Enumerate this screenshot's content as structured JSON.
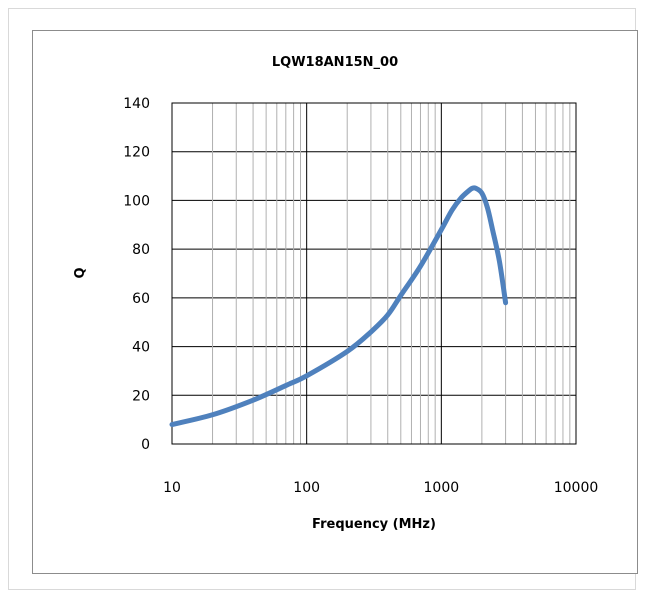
{
  "chart_data": {
    "type": "line",
    "title": "LQW18AN15N_00",
    "xlabel": "Frequency (MHz)",
    "ylabel": "Q",
    "xscale": "log",
    "xlim": [
      10,
      10000
    ],
    "ylim": [
      0,
      140
    ],
    "xticks": [
      10,
      100,
      1000,
      10000
    ],
    "xtick_labels": [
      "10",
      "100",
      "1000",
      "10000"
    ],
    "yticks": [
      0,
      20,
      40,
      60,
      80,
      100,
      120,
      140
    ],
    "ytick_labels": [
      "0",
      "20",
      "40",
      "60",
      "80",
      "100",
      "120",
      "140"
    ],
    "grid": true,
    "legend": "none",
    "line_color": "#4f81bd",
    "series": [
      {
        "x": [
          10,
          20,
          40,
          70,
          100,
          200,
          300,
          400,
          500,
          700,
          1000,
          1200,
          1400,
          1600,
          1700,
          1800,
          2000,
          2200,
          2400,
          2700,
          3000
        ],
        "y": [
          8,
          12,
          18,
          24,
          28,
          38,
          46,
          53,
          61,
          73,
          88,
          96,
          101,
          104,
          105,
          105,
          103,
          97,
          88,
          75,
          58
        ]
      }
    ]
  }
}
